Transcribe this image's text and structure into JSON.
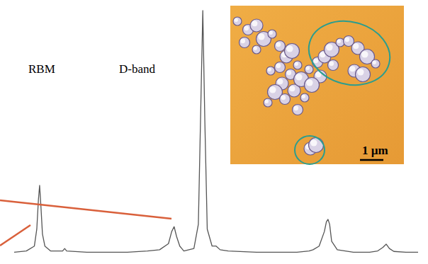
{
  "chart_data": {
    "type": "line",
    "annotations": [
      "RBM",
      "D-band",
      "1 µm"
    ],
    "x": [
      0,
      3,
      5,
      5.6,
      6.0,
      6.3,
      6.6,
      7.0,
      7.6,
      9,
      12,
      12.5,
      13,
      18,
      22,
      28,
      33,
      36,
      38.2,
      39.0,
      39.6,
      40.2,
      41.0,
      42,
      44.5,
      45.6,
      46.2,
      46.7,
      47.2,
      47.8,
      49,
      50,
      51,
      53,
      60,
      70,
      73,
      74,
      75.5,
      76.8,
      77.3,
      77.7,
      78.1,
      78.6,
      80,
      84,
      88,
      90,
      91.3,
      92.1,
      92.9,
      94,
      97,
      100
    ],
    "values": [
      0.5,
      1,
      3,
      10,
      22,
      28,
      20,
      8,
      3,
      1,
      1,
      2,
      1,
      0.5,
      0.5,
      0.5,
      1,
      1.5,
      4,
      9,
      11,
      7,
      3,
      1,
      2,
      12,
      60,
      100,
      55,
      10,
      3,
      3,
      1.5,
      1,
      0.5,
      0.5,
      1,
      1.5,
      3,
      9,
      13,
      14,
      12,
      5,
      1.5,
      0.5,
      0.5,
      1,
      2.5,
      3.8,
      2,
      0.8,
      0.5,
      0.5
    ],
    "color": "#555555",
    "xlim": [
      0,
      100
    ],
    "ylim": [
      0,
      100
    ],
    "tick_labels": false,
    "grid": false
  }
}
